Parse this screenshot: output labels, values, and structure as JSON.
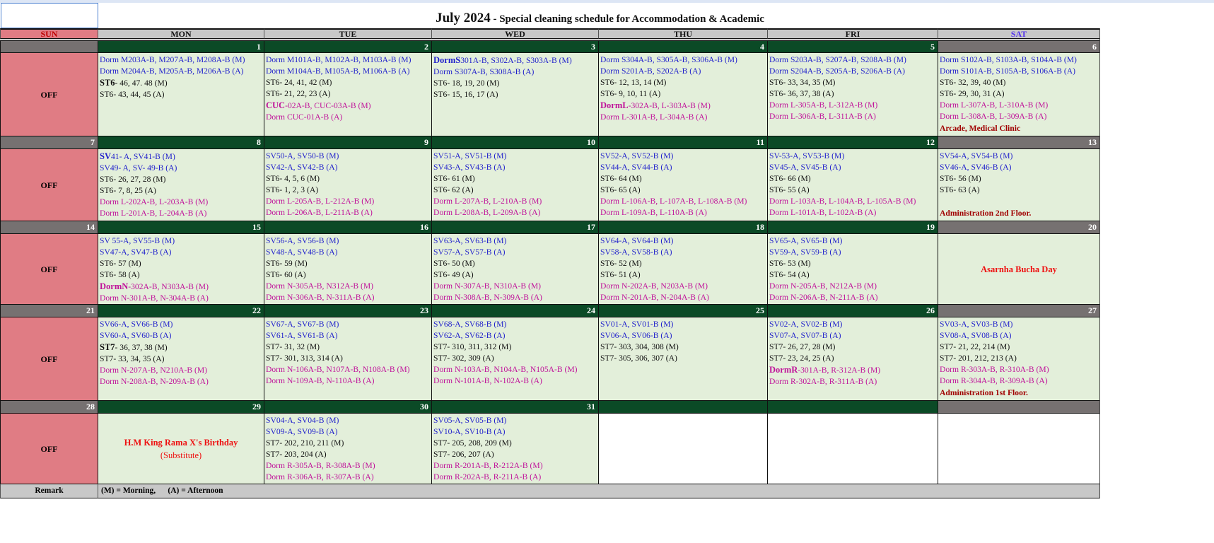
{
  "title": {
    "main": "July 2024",
    "sub": " - Special cleaning schedule for Accommodation & Academic"
  },
  "days": [
    "SUN",
    "MON",
    "TUE",
    "WED",
    "THU",
    "FRI",
    "SAT"
  ],
  "off_label": "OFF",
  "remark": {
    "label": "Remark",
    "text": "(M) = Morning,      (A) = Afternoon"
  },
  "colors": {
    "blue": "#1f1fcc",
    "black": "#111111",
    "magenta": "#c0129a",
    "note": "#a00000",
    "holiday": "#ee1111",
    "date_bar": "#0b4a26",
    "weekend_bar": "#767171",
    "sunday": "#e07c84",
    "cell": "#e3efda"
  },
  "weeks": [
    {
      "sun": "",
      "days": [
        {
          "date": "1",
          "lines": [
            [
              "b",
              "",
              "Dorm M203A-B, M207A-B, M208A-B (M)"
            ],
            [
              "b",
              "",
              "Dorm M204A-B, M205A-B, M206A-B (A)"
            ],
            [
              "k",
              "ST6",
              "- 46, 47. 48 (M)"
            ],
            [
              "k",
              "",
              "ST6- 43, 44, 45 (A)"
            ]
          ]
        },
        {
          "date": "2",
          "lines": [
            [
              "b",
              "",
              "Dorm M101A-B, M102A-B, M103A-B (M)"
            ],
            [
              "b",
              "",
              "Dorm M104A-B, M105A-B, M106A-B (A)"
            ],
            [
              "k",
              "",
              "ST6- 24, 41, 42 (M)"
            ],
            [
              "k",
              "",
              "ST6- 21, 22, 23 (A)"
            ],
            [
              "m",
              "CUC",
              "-02A-B, CUC-03A-B (M)"
            ],
            [
              "m",
              "",
              "Dorm CUC-01A-B (A)"
            ]
          ]
        },
        {
          "date": "3",
          "lines": [
            [
              "b",
              "DormS",
              "301A-B, S302A-B, S303A-B (M)"
            ],
            [
              "b",
              "",
              "Dorm S307A-B, S308A-B (A)"
            ],
            [
              "k",
              "",
              "ST6- 18, 19, 20 (M)"
            ],
            [
              "k",
              "",
              "ST6- 15, 16, 17 (A)"
            ]
          ]
        },
        {
          "date": "4",
          "lines": [
            [
              "b",
              "",
              "Dorm S304A-B, S305A-B, S306A-B (M)"
            ],
            [
              "b",
              "",
              "Dorm S201A-B, S202A-B (A)"
            ],
            [
              "k",
              "",
              "ST6- 12, 13, 14 (M)"
            ],
            [
              "k",
              "",
              "ST6- 9, 10, 11 (A)"
            ],
            [
              "m",
              "DormL",
              "-302A-B, L-303A-B (M)"
            ],
            [
              "m",
              "",
              "Dorm L-301A-B, L-304A-B (A)"
            ]
          ]
        },
        {
          "date": "5",
          "lines": [
            [
              "b",
              "",
              "Dorm S203A-B, S207A-B, S208A-B (M)"
            ],
            [
              "b",
              "",
              "Dorm S204A-B, S205A-B, S206A-B (A)"
            ],
            [
              "k",
              "",
              "ST6- 33, 34, 35 (M)"
            ],
            [
              "k",
              "",
              "ST6- 36, 37, 38 (A)"
            ],
            [
              "m",
              "",
              "Dorm L-305A-B, L-312A-B (M)"
            ],
            [
              "m",
              "",
              "Dorm L-306A-B, L-311A-B (A)"
            ]
          ]
        },
        {
          "date": "6",
          "note": "Arcade, Medical Clinic",
          "lines": [
            [
              "b",
              "",
              "Dorm S102A-B, S103A-B, S104A-B (M)"
            ],
            [
              "b",
              "",
              "Dorm S101A-B, S105A-B, S106A-B (A)"
            ],
            [
              "k",
              "",
              "ST6- 32, 39, 40 (M)"
            ],
            [
              "k",
              "",
              "ST6- 29, 30, 31 (A)"
            ],
            [
              "m",
              "",
              "Dorm L-307A-B, L-310A-B (M)"
            ],
            [
              "m",
              "",
              "Dorm L-308A-B, L-309A-B (A)"
            ]
          ]
        }
      ]
    },
    {
      "sun": "7",
      "days": [
        {
          "date": "8",
          "lines": [
            [
              "b",
              "SV",
              "41- A, SV41-B (M)"
            ],
            [
              "b",
              "",
              "SV49- A, SV- 49-B (A)"
            ],
            [
              "k",
              "",
              "ST6- 26, 27, 28 (M)"
            ],
            [
              "k",
              "",
              "ST6- 7, 8, 25 (A)"
            ],
            [
              "m",
              "",
              "Dorm L-202A-B, L-203A-B (M)"
            ],
            [
              "m",
              "",
              "Dorm L-201A-B, L-204A-B (A)"
            ]
          ]
        },
        {
          "date": "9",
          "lines": [
            [
              "b",
              "",
              "SV50-A, SV50-B (M)"
            ],
            [
              "b",
              "",
              "SV42-A, SV42-B (A)"
            ],
            [
              "k",
              "",
              "ST6- 4, 5, 6 (M)"
            ],
            [
              "k",
              "",
              "ST6- 1, 2, 3 (A)"
            ],
            [
              "m",
              "",
              "Dorm L-205A-B, L-212A-B (M)"
            ],
            [
              "m",
              "",
              "Dorm L-206A-B, L-211A-B (A)"
            ]
          ]
        },
        {
          "date": "10",
          "lines": [
            [
              "b",
              "",
              "SV51-A, SV51-B (M)"
            ],
            [
              "b",
              "",
              "SV43-A, SV43-B (A)"
            ],
            [
              "k",
              "",
              "ST6- 61 (M)"
            ],
            [
              "k",
              "",
              "ST6- 62 (A)"
            ],
            [
              "m",
              "",
              "Dorm L-207A-B, L-210A-B (M)"
            ],
            [
              "m",
              "",
              "Dorm L-208A-B, L-209A-B (A)"
            ]
          ]
        },
        {
          "date": "11",
          "lines": [
            [
              "b",
              "",
              "SV52-A, SV52-B (M)"
            ],
            [
              "b",
              "",
              "SV44-A, SV44-B (A)"
            ],
            [
              "k",
              "",
              "ST6- 64 (M)"
            ],
            [
              "k",
              "",
              "ST6- 65 (A)"
            ],
            [
              "m",
              "",
              "Dorm L-106A-B, L-107A-B, L-108A-B (M)"
            ],
            [
              "m",
              "",
              "Dorm L-109A-B, L-110A-B (A)"
            ]
          ]
        },
        {
          "date": "12",
          "lines": [
            [
              "b",
              "",
              "SV-53-A, SV53-B (M)"
            ],
            [
              "b",
              "",
              "SV45-A, SV45-B (A)"
            ],
            [
              "k",
              "",
              "ST6- 66 (M)"
            ],
            [
              "k",
              "",
              "ST6- 55 (A)"
            ],
            [
              "m",
              "",
              "Dorm L-103A-B, L-104A-B, L-105A-B (M)"
            ],
            [
              "m",
              "",
              "Dorm L-101A-B, L-102A-B (A)"
            ]
          ]
        },
        {
          "date": "13",
          "note": "Administration 2nd Floor.",
          "lines": [
            [
              "b",
              "",
              "SV54-A, SV54-B (M)"
            ],
            [
              "b",
              "",
              "SV46-A, SV46-B (A)"
            ],
            [
              "k",
              "",
              "ST6- 56 (M)"
            ],
            [
              "k",
              "",
              "ST6- 63 (A)"
            ]
          ]
        }
      ]
    },
    {
      "sun": "14",
      "days": [
        {
          "date": "15",
          "lines": [
            [
              "b",
              "",
              "SV 55-A, SV55-B (M)"
            ],
            [
              "b",
              "",
              "SV47-A, SV47-B (A)"
            ],
            [
              "k",
              "",
              "ST6- 57 (M)"
            ],
            [
              "k",
              "",
              "ST6- 58 (A)"
            ],
            [
              "m",
              "DormN",
              "-302A-B, N303A-B (M)"
            ],
            [
              "m",
              "",
              "Dorm N-301A-B, N-304A-B (A)"
            ]
          ]
        },
        {
          "date": "16",
          "lines": [
            [
              "b",
              "",
              "SV56-A, SV56-B (M)"
            ],
            [
              "b",
              "",
              "SV48-A, SV48-B (A)"
            ],
            [
              "k",
              "",
              "ST6- 59 (M)"
            ],
            [
              "k",
              "",
              "ST6- 60 (A)"
            ],
            [
              "m",
              "",
              "Dorm N-305A-B, N312A-B (M)"
            ],
            [
              "m",
              "",
              "Dorm N-306A-B, N-311A-B (A)"
            ]
          ]
        },
        {
          "date": "17",
          "lines": [
            [
              "b",
              "",
              "SV63-A, SV63-B (M)"
            ],
            [
              "b",
              "",
              "SV57-A, SV57-B (A)"
            ],
            [
              "k",
              "",
              "ST6- 50 (M)"
            ],
            [
              "k",
              "",
              "ST6- 49 (A)"
            ],
            [
              "m",
              "",
              "Dorm N-307A-B, N310A-B (M)"
            ],
            [
              "m",
              "",
              "Dorm N-308A-B, N-309A-B (A)"
            ]
          ]
        },
        {
          "date": "18",
          "lines": [
            [
              "b",
              "",
              "SV64-A, SV64-B (M)"
            ],
            [
              "b",
              "",
              "SV58-A, SV58-B (A)"
            ],
            [
              "k",
              "",
              "ST6- 52 (M)"
            ],
            [
              "k",
              "",
              "ST6- 51 (A)"
            ],
            [
              "m",
              "",
              "Dorm N-202A-B, N203A-B (M)"
            ],
            [
              "m",
              "",
              "Dorm N-201A-B, N-204A-B (A)"
            ]
          ]
        },
        {
          "date": "19",
          "lines": [
            [
              "b",
              "",
              "SV65-A, SV65-B (M)"
            ],
            [
              "b",
              "",
              "SV59-A, SV59-B (A)"
            ],
            [
              "k",
              "",
              "ST6- 53 (M)"
            ],
            [
              "k",
              "",
              "ST6- 54 (A)"
            ],
            [
              "m",
              "",
              "Dorm N-205A-B, N212A-B (M)"
            ],
            [
              "m",
              "",
              "Dorm N-206A-B, N-211A-B (A)"
            ]
          ]
        },
        {
          "date": "20",
          "holiday": {
            "name": "Asarnha Bucha Day",
            "sub": ""
          },
          "lines": []
        }
      ]
    },
    {
      "sun": "21",
      "days": [
        {
          "date": "22",
          "lines": [
            [
              "b",
              "",
              "SV66-A, SV66-B (M)"
            ],
            [
              "b",
              "",
              "SV60-A, SV60-B (A)"
            ],
            [
              "k",
              "ST7",
              "- 36, 37, 38 (M)"
            ],
            [
              "k",
              "",
              "ST7- 33, 34, 35 (A)"
            ],
            [
              "m",
              "",
              "Dorm N-207A-B, N210A-B (M)"
            ],
            [
              "m",
              "",
              "Dorm N-208A-B, N-209A-B (A)"
            ]
          ]
        },
        {
          "date": "23",
          "lines": [
            [
              "b",
              "",
              "SV67-A, SV67-B (M)"
            ],
            [
              "b",
              "",
              "SV61-A, SV61-B (A)"
            ],
            [
              "k",
              "",
              "ST7- 31, 32 (M)"
            ],
            [
              "k",
              "",
              "ST7- 301, 313, 314 (A)"
            ],
            [
              "m",
              "",
              "Dorm N-106A-B, N107A-B, N108A-B (M)"
            ],
            [
              "m",
              "",
              "Dorm N-109A-B, N-110A-B (A)"
            ]
          ]
        },
        {
          "date": "24",
          "lines": [
            [
              "b",
              "",
              "SV68-A, SV68-B (M)"
            ],
            [
              "b",
              "",
              "SV62-A, SV62-B (A)"
            ],
            [
              "k",
              "",
              "ST7- 310, 311, 312 (M)"
            ],
            [
              "k",
              "",
              "ST7- 302, 309 (A)"
            ],
            [
              "m",
              "",
              "Dorm N-103A-B, N104A-B, N105A-B (M)"
            ],
            [
              "m",
              "",
              "Dorm N-101A-B, N-102A-B (A)"
            ]
          ]
        },
        {
          "date": "25",
          "lines": [
            [
              "b",
              "",
              "SV01-A, SV01-B (M)"
            ],
            [
              "b",
              "",
              "SV06-A, SV06-B (A)"
            ],
            [
              "k",
              "",
              "ST7- 303, 304, 308 (M)"
            ],
            [
              "k",
              "",
              "ST7- 305, 306, 307 (A)"
            ]
          ]
        },
        {
          "date": "26",
          "lines": [
            [
              "b",
              "",
              "SV02-A, SV02-B (M)"
            ],
            [
              "b",
              "",
              "SV07-A, SV07-B (A)"
            ],
            [
              "k",
              "",
              "ST7- 26, 27, 28 (M)"
            ],
            [
              "k",
              "",
              "ST7- 23, 24, 25 (A)"
            ],
            [
              "m",
              "DormR",
              "-301A-B, R-312A-B (M)"
            ],
            [
              "m",
              "",
              "Dorm R-302A-B, R-311A-B (A)"
            ]
          ]
        },
        {
          "date": "27",
          "note": "Administration 1st Floor.",
          "lines": [
            [
              "b",
              "",
              "SV03-A, SV03-B (M)"
            ],
            [
              "b",
              "",
              "SV08-A, SV08-B (A)"
            ],
            [
              "k",
              "",
              "ST7- 21, 22, 214 (M)"
            ],
            [
              "k",
              "",
              "ST7- 201, 212, 213 (A)"
            ],
            [
              "m",
              "",
              "Dorm R-303A-B, R-310A-B (M)"
            ],
            [
              "m",
              "",
              "Dorm R-304A-B, R-309A-B (A)"
            ]
          ]
        }
      ]
    },
    {
      "sun": "28",
      "days": [
        {
          "date": "29",
          "holiday": {
            "name": "H.M King Rama X's Birthday",
            "sub": "(Substitute)"
          },
          "lines": []
        },
        {
          "date": "30",
          "lines": [
            [
              "b",
              "",
              "SV04-A, SV04-B (M)"
            ],
            [
              "b",
              "",
              "SV09-A, SV09-B (A)"
            ],
            [
              "k",
              "",
              "ST7- 202, 210, 211 (M)"
            ],
            [
              "k",
              "",
              "ST7- 203, 204 (A)"
            ],
            [
              "m",
              "",
              "Dorm R-305A-B, R-308A-B (M)"
            ],
            [
              "m",
              "",
              "Dorm R-306A-B, R-307A-B (A)"
            ]
          ]
        },
        {
          "date": "31",
          "lines": [
            [
              "b",
              "",
              "SV05-A, SV05-B (M)"
            ],
            [
              "b",
              "",
              "SV10-A, SV10-B (A)"
            ],
            [
              "k",
              "",
              "ST7- 205, 208, 209 (M)"
            ],
            [
              "k",
              "",
              "ST7- 206, 207 (A)"
            ],
            [
              "m",
              "",
              "Dorm R-201A-B, R-212A-B (M)"
            ],
            [
              "m",
              "",
              "Dorm R-202A-B, R-211A-B (A)"
            ]
          ]
        },
        {
          "date": "",
          "empty": true,
          "lines": []
        },
        {
          "date": "",
          "empty": true,
          "lines": []
        },
        {
          "date": "",
          "empty": true,
          "lines": []
        }
      ]
    }
  ]
}
